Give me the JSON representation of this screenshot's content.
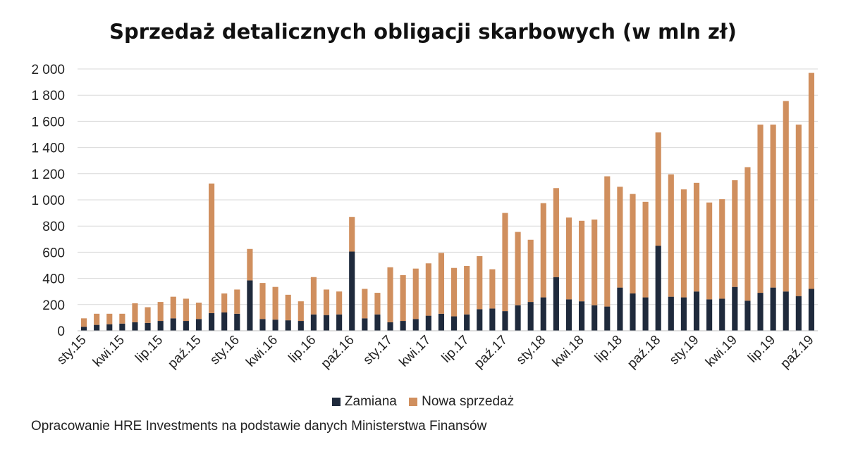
{
  "chart_data": {
    "type": "bar",
    "stacked": true,
    "title": "Sprzedaż detalicznych obligacji skarbowych (w mln zł)",
    "xlabel": "",
    "ylabel": "",
    "ylim": [
      0,
      2000
    ],
    "yticks": [
      0,
      200,
      400,
      600,
      800,
      1000,
      1200,
      1400,
      1600,
      1800,
      2000
    ],
    "ytick_labels": [
      "0",
      "200",
      "400",
      "600",
      "800",
      "1 000",
      "1 200",
      "1 400",
      "1 600",
      "1 800",
      "2 000"
    ],
    "grid": true,
    "legend": "bottom",
    "categories": [
      "sty.15",
      "lut.15",
      "mar.15",
      "kwi.15",
      "maj.15",
      "cze.15",
      "lip.15",
      "sie.15",
      "wrz.15",
      "paź.15",
      "lis.15",
      "gru.15",
      "sty.16",
      "lut.16",
      "mar.16",
      "kwi.16",
      "maj.16",
      "cze.16",
      "lip.16",
      "sie.16",
      "wrz.16",
      "paź.16",
      "lis.16",
      "gru.16",
      "sty.17",
      "lut.17",
      "mar.17",
      "kwi.17",
      "maj.17",
      "cze.17",
      "lip.17",
      "sie.17",
      "wrz.17",
      "paź.17",
      "lis.17",
      "gru.17",
      "sty.18",
      "lut.18",
      "mar.18",
      "kwi.18",
      "maj.18",
      "cze.18",
      "lip.18",
      "sie.18",
      "wrz.18",
      "paź.18",
      "lis.18",
      "gru.18",
      "sty.19",
      "lut.19",
      "mar.19",
      "kwi.19",
      "maj.19",
      "cze.19",
      "lip.19",
      "sie.19",
      "wrz.19",
      "paź.19"
    ],
    "xtick_labels": [
      {
        "index": 0,
        "label": "sty.15"
      },
      {
        "index": 3,
        "label": "kwi.15"
      },
      {
        "index": 6,
        "label": "lip.15"
      },
      {
        "index": 9,
        "label": "paź.15"
      },
      {
        "index": 12,
        "label": "sty.16"
      },
      {
        "index": 15,
        "label": "kwi.16"
      },
      {
        "index": 18,
        "label": "lip.16"
      },
      {
        "index": 21,
        "label": "paź.16"
      },
      {
        "index": 24,
        "label": "sty.17"
      },
      {
        "index": 27,
        "label": "kwi.17"
      },
      {
        "index": 30,
        "label": "lip.17"
      },
      {
        "index": 33,
        "label": "paź.17"
      },
      {
        "index": 36,
        "label": "sty.18"
      },
      {
        "index": 39,
        "label": "kwi.18"
      },
      {
        "index": 42,
        "label": "lip.18"
      },
      {
        "index": 45,
        "label": "paź.18"
      },
      {
        "index": 48,
        "label": "sty.19"
      },
      {
        "index": 51,
        "label": "kwi.19"
      },
      {
        "index": 54,
        "label": "lip.19"
      },
      {
        "index": 57,
        "label": "paź.19"
      }
    ],
    "series": [
      {
        "name": "Zamiana",
        "color": "#1f2a3c",
        "values": [
          30,
          45,
          50,
          55,
          65,
          60,
          75,
          95,
          75,
          90,
          135,
          140,
          130,
          385,
          90,
          85,
          80,
          75,
          125,
          120,
          125,
          605,
          95,
          125,
          65,
          75,
          90,
          115,
          130,
          110,
          125,
          165,
          170,
          150,
          195,
          220,
          255,
          410,
          240,
          225,
          195,
          185,
          330,
          285,
          255,
          650,
          260,
          255,
          300,
          240,
          245,
          335,
          230,
          290,
          330,
          300,
          265,
          320
        ]
      },
      {
        "name": "Nowa sprzedaż",
        "color": "#d08f5e",
        "values": [
          65,
          85,
          80,
          75,
          145,
          120,
          145,
          165,
          170,
          125,
          990,
          145,
          185,
          240,
          275,
          250,
          195,
          150,
          285,
          195,
          175,
          265,
          225,
          165,
          420,
          350,
          385,
          400,
          465,
          370,
          370,
          405,
          300,
          750,
          560,
          475,
          720,
          680,
          625,
          615,
          655,
          995,
          770,
          760,
          730,
          865,
          935,
          825,
          830,
          740,
          760,
          815,
          1020,
          1285,
          1245,
          1455,
          1310,
          1650
        ]
      }
    ]
  },
  "legend_items": [
    {
      "label": "Zamiana",
      "color": "#1f2a3c"
    },
    {
      "label": "Nowa sprzedaż",
      "color": "#d08f5e"
    }
  ],
  "source_note": "Opracowanie HRE Investments na podstawie danych Ministerstwa Finansów"
}
